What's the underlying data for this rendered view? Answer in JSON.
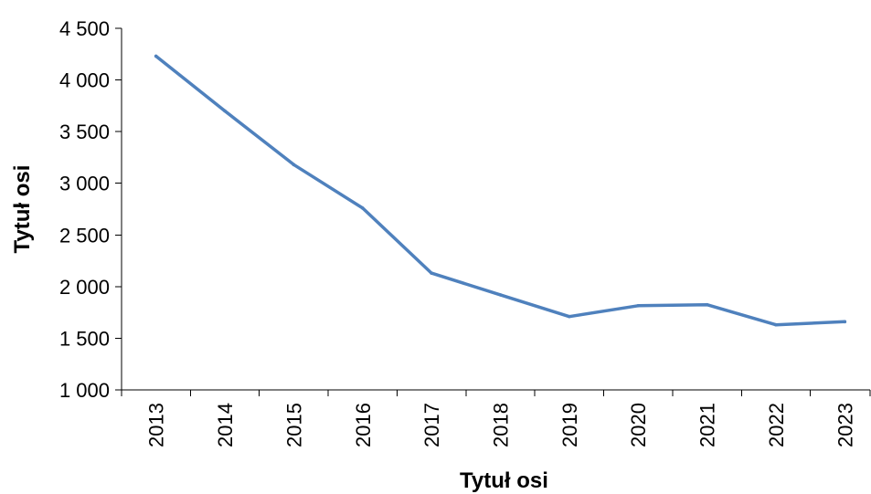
{
  "chart_data": {
    "type": "line",
    "categories": [
      "2013",
      "2014",
      "2015",
      "2016",
      "2017",
      "2018",
      "2019",
      "2020",
      "2021",
      "2022",
      "2023"
    ],
    "series": [
      {
        "values": [
          4230,
          3700,
          3180,
          2760,
          2130,
          1920,
          1710,
          1815,
          1825,
          1630,
          1660
        ]
      }
    ],
    "xlabel": "Tytuł osi",
    "ylabel": "Tytuł osi",
    "ylim": [
      1000,
      4500
    ],
    "yticks": [
      1000,
      1500,
      2000,
      2500,
      3000,
      3500,
      4000,
      4500
    ],
    "ytick_labels": [
      "1 000",
      "1 500",
      "2 000",
      "2 500",
      "3 000",
      "3 500",
      "4 000",
      "4 500"
    ],
    "grid": false,
    "legend": false,
    "line_color": "#4F81BD"
  }
}
